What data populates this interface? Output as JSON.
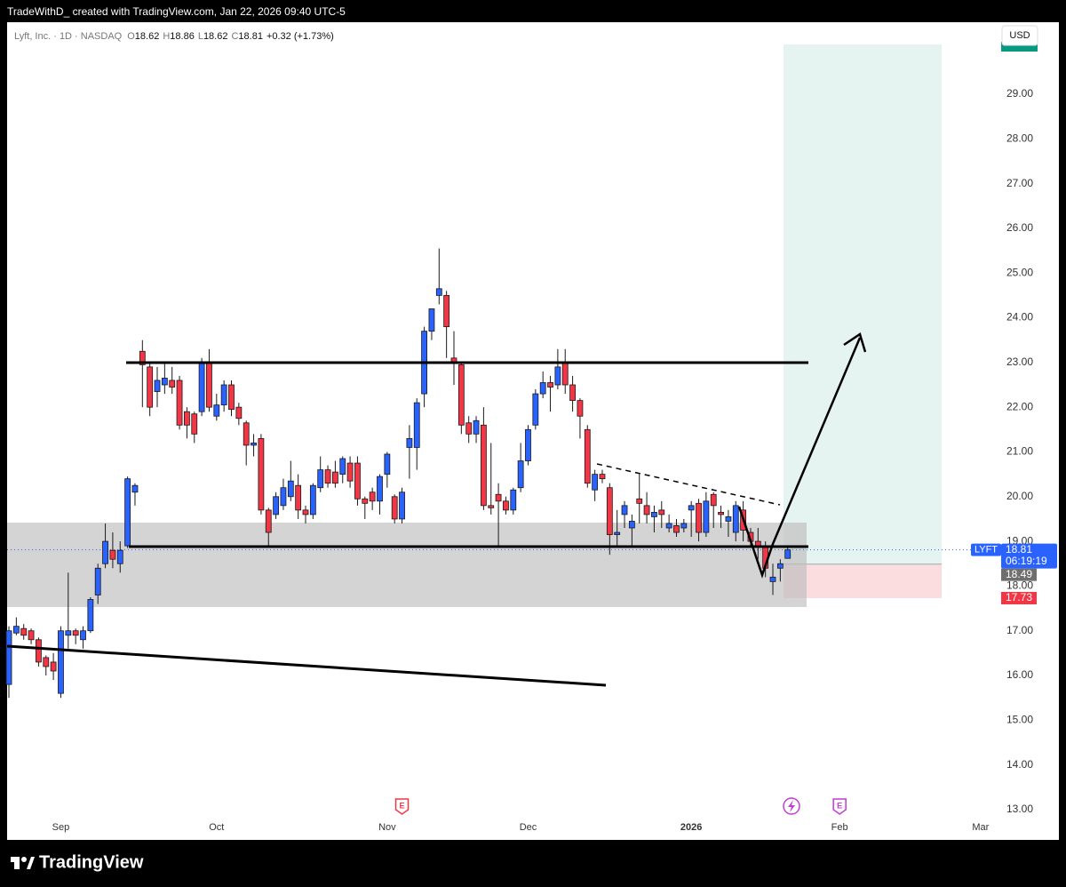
{
  "header": {
    "text": "TradeWithD_ created with TradingView.com, Jan 22, 2026 09:40 UTC-5"
  },
  "legend": {
    "symbol": "Lyft, Inc. · 1D · NASDAQ",
    "ohlc": [
      {
        "key": "O",
        "value": "18.62"
      },
      {
        "key": "H",
        "value": "18.86"
      },
      {
        "key": "L",
        "value": "18.62"
      },
      {
        "key": "C",
        "value": "18.81"
      }
    ],
    "change": "+0.32 (+1.73%)"
  },
  "currency": "USD",
  "brand": "TradingView",
  "chart_data": {
    "type": "candlestick",
    "up_color": "#2962ff",
    "down_color": "#f23645",
    "open": [
      15.8,
      16.95,
      17.05,
      17.0,
      16.8,
      16.4,
      16.3,
      15.6,
      16.9,
      17.0,
      16.8,
      17.0,
      17.8,
      18.5,
      18.8,
      18.5,
      18.9,
      20.1,
      23.25,
      22.9,
      22.35,
      22.5,
      22.6,
      22.6,
      21.9,
      21.85,
      21.9,
      23.0,
      21.8,
      22.05,
      22.5,
      22.0,
      21.65,
      21.15,
      21.3,
      19.7,
      19.6,
      19.8,
      20.0,
      20.25,
      19.7,
      19.6,
      20.2,
      20.6,
      20.55,
      20.5,
      20.75,
      20.75,
      19.95,
      20.1,
      19.9,
      20.5,
      20.0,
      19.5,
      21.1,
      21.1,
      22.3,
      23.7,
      24.5,
      24.5,
      23.1,
      22.95,
      21.65,
      21.4,
      21.6,
      19.8,
      20.05,
      19.9,
      19.7,
      20.2,
      20.8,
      21.6,
      22.3,
      22.55,
      22.5,
      23.0,
      22.5,
      22.15,
      21.5,
      20.15,
      20.5,
      20.2,
      19.15,
      19.6,
      19.3,
      19.95,
      19.8,
      19.55,
      19.7,
      19.3,
      19.35,
      19.3,
      19.7,
      19.85,
      19.2,
      20.05,
      19.65,
      19.45,
      19.2,
      19.7,
      19.2,
      19.0,
      18.9,
      18.1,
      18.4,
      18.62
    ],
    "high": [
      17.1,
      17.3,
      17.15,
      17.05,
      16.85,
      16.45,
      16.5,
      17.1,
      18.3,
      17.05,
      17.1,
      17.75,
      18.5,
      19.4,
      19.2,
      19.0,
      20.45,
      20.3,
      23.5,
      23.0,
      22.9,
      23.0,
      22.9,
      22.7,
      22.0,
      21.9,
      23.1,
      23.3,
      22.3,
      22.6,
      22.6,
      22.1,
      21.7,
      21.4,
      21.4,
      19.75,
      20.1,
      20.4,
      20.8,
      20.5,
      19.8,
      20.3,
      20.9,
      20.7,
      20.8,
      20.9,
      20.9,
      20.9,
      20.0,
      20.2,
      20.5,
      21.0,
      20.05,
      20.2,
      21.6,
      22.2,
      23.8,
      24.2,
      25.55,
      24.6,
      23.7,
      23.0,
      21.8,
      21.8,
      22.0,
      21.2,
      20.3,
      20.0,
      20.2,
      21.2,
      21.6,
      22.4,
      22.8,
      22.7,
      23.3,
      23.3,
      22.7,
      22.2,
      21.6,
      20.6,
      20.6,
      20.3,
      19.7,
      19.9,
      19.6,
      20.5,
      20.1,
      19.8,
      19.9,
      19.6,
      19.5,
      19.5,
      19.9,
      19.95,
      20.1,
      20.1,
      19.8,
      19.7,
      19.9,
      19.9,
      19.3,
      19.3,
      19.0,
      18.5,
      18.6,
      18.86
    ],
    "low": [
      15.5,
      16.9,
      16.8,
      16.7,
      16.2,
      16.0,
      15.9,
      15.5,
      16.6,
      16.7,
      16.6,
      16.95,
      17.6,
      18.4,
      18.4,
      18.3,
      18.85,
      19.8,
      22.0,
      21.8,
      22.0,
      22.3,
      22.3,
      21.5,
      21.3,
      21.2,
      21.8,
      21.9,
      21.7,
      21.9,
      21.8,
      21.6,
      20.7,
      20.9,
      19.6,
      18.9,
      19.5,
      19.7,
      19.9,
      19.5,
      19.4,
      19.5,
      20.1,
      20.2,
      20.2,
      20.3,
      20.2,
      19.8,
      19.5,
      19.7,
      19.6,
      20.2,
      19.4,
      19.4,
      20.4,
      20.6,
      22.0,
      23.5,
      24.3,
      23.1,
      22.5,
      21.4,
      21.2,
      21.2,
      19.7,
      19.6,
      18.9,
      19.6,
      19.6,
      20.1,
      20.7,
      21.5,
      22.2,
      21.9,
      22.4,
      22.3,
      21.9,
      21.3,
      20.2,
      19.9,
      20.3,
      18.7,
      18.9,
      19.3,
      18.9,
      19.4,
      19.4,
      19.2,
      19.3,
      19.2,
      19.1,
      19.2,
      19.1,
      19.0,
      19.1,
      19.3,
      19.3,
      19.1,
      19.0,
      19.0,
      18.9,
      18.6,
      18.2,
      17.8,
      18.1,
      18.62
    ],
    "close": [
      17.0,
      17.1,
      16.9,
      16.8,
      16.3,
      16.2,
      16.1,
      17.0,
      17.0,
      16.9,
      17.0,
      17.7,
      18.4,
      19.0,
      18.6,
      18.8,
      20.4,
      20.25,
      22.95,
      22.0,
      22.6,
      22.65,
      22.45,
      21.6,
      21.6,
      21.4,
      23.0,
      22.0,
      22.05,
      22.5,
      21.95,
      21.75,
      21.15,
      21.2,
      19.7,
      19.2,
      20.0,
      20.2,
      20.35,
      19.7,
      19.6,
      20.25,
      20.6,
      20.3,
      20.3,
      20.85,
      20.35,
      19.95,
      19.85,
      19.9,
      20.45,
      20.95,
      19.5,
      20.1,
      21.3,
      22.1,
      23.7,
      24.2,
      24.65,
      23.8,
      23.0,
      21.6,
      21.4,
      21.7,
      19.8,
      19.75,
      19.9,
      19.7,
      20.15,
      20.8,
      21.5,
      22.3,
      22.55,
      22.45,
      22.9,
      22.5,
      22.15,
      21.8,
      20.3,
      20.5,
      20.4,
      19.15,
      19.2,
      19.8,
      19.45,
      19.85,
      19.6,
      19.65,
      19.6,
      19.4,
      19.2,
      19.4,
      19.8,
      19.2,
      19.9,
      19.8,
      19.6,
      19.55,
      19.8,
      19.25,
      19.0,
      18.9,
      18.4,
      18.2,
      18.5,
      18.81
    ],
    "xlim": [
      -1.2,
      132.7
    ],
    "xticks": [
      {
        "value": 7,
        "label": "Sep"
      },
      {
        "value": 28,
        "label": "Oct"
      },
      {
        "value": 51,
        "label": "Nov"
      },
      {
        "value": 70,
        "label": "Dec"
      },
      {
        "value": 92,
        "label": "2026"
      },
      {
        "value": 112,
        "label": "Feb"
      },
      {
        "value": 131,
        "label": "Mar"
      }
    ],
    "ylim": [
      12.82,
      30.61
    ],
    "yticks": [
      {
        "value": 13,
        "label": "13.00"
      },
      {
        "value": 14,
        "label": "14.00"
      },
      {
        "value": 15,
        "label": "15.00"
      },
      {
        "value": 16,
        "label": "16.00"
      },
      {
        "value": 17,
        "label": "17.00"
      },
      {
        "value": 18,
        "label": "18.00"
      },
      {
        "value": 19,
        "label": "19.00"
      },
      {
        "value": 20,
        "label": "20.00"
      },
      {
        "value": 21,
        "label": "21.00"
      },
      {
        "value": 22,
        "label": "22.00"
      },
      {
        "value": 23,
        "label": "23.00"
      },
      {
        "value": 24,
        "label": "24.00"
      },
      {
        "value": 25,
        "label": "25.00"
      },
      {
        "value": 26,
        "label": "26.00"
      },
      {
        "value": 27,
        "label": "27.00"
      },
      {
        "value": 28,
        "label": "28.00"
      },
      {
        "value": 29,
        "label": "29.00"
      }
    ],
    "last_price": {
      "symbol": "LYFT",
      "value": 18.81,
      "countdown": "06:19:19"
    },
    "entry_price": 18.49,
    "stop_price": 17.73,
    "events": [
      {
        "label": "E",
        "index": 53,
        "color": "#f23645"
      },
      {
        "label": "E",
        "index": 112,
        "color": "#c23cd4"
      }
    ]
  }
}
